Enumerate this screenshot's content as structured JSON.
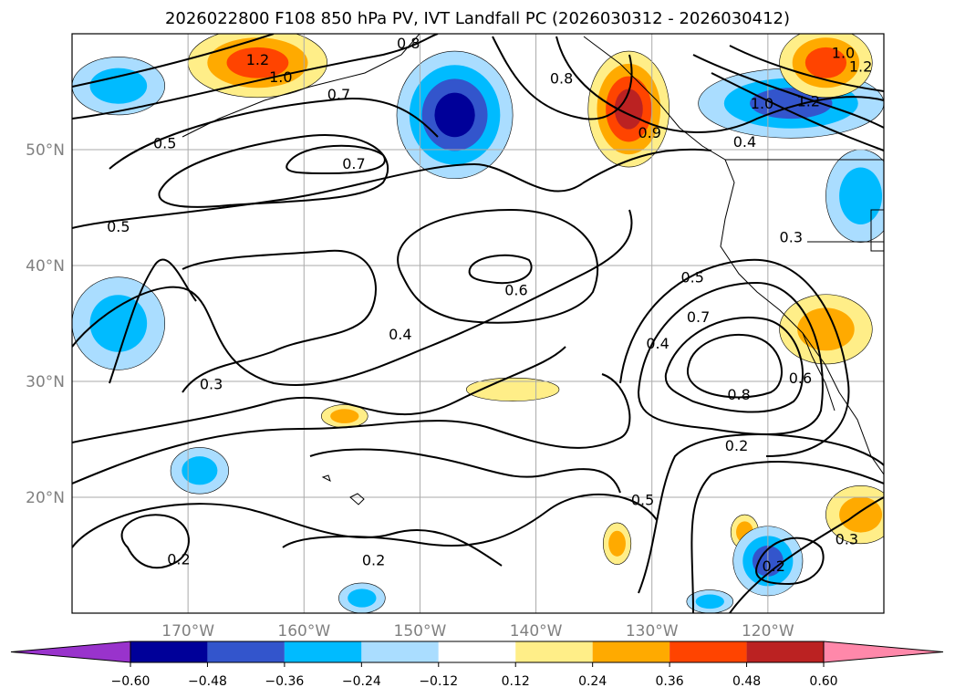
{
  "chart_data": {
    "type": "heatmap",
    "title": "2026022800 F108 850 hPa PV, IVT Landfall PC (2026030312 - 2026030412)",
    "lon_range": [
      -180,
      -110
    ],
    "lat_range": [
      10,
      60
    ],
    "x_ticks": [
      {
        "value": -170,
        "label": "170°W"
      },
      {
        "value": -160,
        "label": "160°W"
      },
      {
        "value": -150,
        "label": "150°W"
      },
      {
        "value": -140,
        "label": "140°W"
      },
      {
        "value": -130,
        "label": "130°W"
      },
      {
        "value": -120,
        "label": "120°W"
      }
    ],
    "y_ticks": [
      {
        "value": 50,
        "label": "50°N"
      },
      {
        "value": 40,
        "label": "40°N"
      },
      {
        "value": 30,
        "label": "30°N"
      },
      {
        "value": 20,
        "label": "20°N"
      }
    ],
    "colorbar": {
      "levels": [
        -0.72,
        -0.6,
        -0.48,
        -0.36,
        -0.24,
        -0.12,
        0.12,
        0.24,
        0.36,
        0.48,
        0.6,
        0.72
      ],
      "labels": [
        "−0.60",
        "−0.48",
        "−0.36",
        "−0.24",
        "−0.12",
        "0.12",
        "0.24",
        "0.36",
        "0.48",
        "0.60"
      ],
      "colors": [
        "#9933cc",
        "#000099",
        "#3355cc",
        "#00bbff",
        "#aaddff",
        "#ffffff",
        "#ffee88",
        "#ffaa00",
        "#ff4400",
        "#bb2222",
        "#ff88aa"
      ],
      "extend": "both"
    },
    "shaded_regions": [
      {
        "lon": -164,
        "lat": 57.5,
        "rx": 6,
        "ry": 3,
        "value": 0.5
      },
      {
        "lon": -176,
        "lat": 55.5,
        "rx": 4,
        "ry": 2.5,
        "value": -0.3
      },
      {
        "lon": -147,
        "lat": 53,
        "rx": 5,
        "ry": 5.5,
        "value": -0.65
      },
      {
        "lon": -132,
        "lat": 53.5,
        "rx": 3.5,
        "ry": 5,
        "value": 0.62
      },
      {
        "lon": -118,
        "lat": 54,
        "rx": 8,
        "ry": 3,
        "value": -0.42
      },
      {
        "lon": -112,
        "lat": 46,
        "rx": 3,
        "ry": 4,
        "value": -0.4
      },
      {
        "lon": -115,
        "lat": 57.5,
        "rx": 4,
        "ry": 3,
        "value": 0.45
      },
      {
        "lon": -176,
        "lat": 35,
        "rx": 4,
        "ry": 4,
        "value": -0.3
      },
      {
        "lon": -115,
        "lat": 34.5,
        "rx": 4,
        "ry": 3,
        "value": 0.38
      },
      {
        "lon": -142,
        "lat": 29.3,
        "rx": 4,
        "ry": 1,
        "value": 0.28
      },
      {
        "lon": -156.5,
        "lat": 27,
        "rx": 2,
        "ry": 1,
        "value": 0.3
      },
      {
        "lon": -169,
        "lat": 22.3,
        "rx": 2.5,
        "ry": 2,
        "value": -0.3
      },
      {
        "lon": -133,
        "lat": 16,
        "rx": 1.2,
        "ry": 1.8,
        "value": 0.3
      },
      {
        "lon": -122,
        "lat": 17,
        "rx": 1.2,
        "ry": 1.5,
        "value": 0.3
      },
      {
        "lon": -120,
        "lat": 14.5,
        "rx": 3,
        "ry": 3,
        "value": -0.52
      },
      {
        "lon": -112,
        "lat": 18.5,
        "rx": 3,
        "ry": 2.5,
        "value": 0.4
      },
      {
        "lon": -155,
        "lat": 11.3,
        "rx": 2,
        "ry": 1.3,
        "value": -0.3
      },
      {
        "lon": -125,
        "lat": 11,
        "rx": 2,
        "ry": 1,
        "value": -0.3
      }
    ],
    "contour_labels": [
      {
        "text": "1.2",
        "lon": -164,
        "lat": 57.8
      },
      {
        "text": "1.0",
        "lon": -162,
        "lat": 56.3
      },
      {
        "text": "0.7",
        "lon": -157,
        "lat": 54.8
      },
      {
        "text": "0.8",
        "lon": -151,
        "lat": 59.2
      },
      {
        "text": "0.8",
        "lon": -137.8,
        "lat": 56.2
      },
      {
        "text": "0.9",
        "lon": -130.2,
        "lat": 51.5
      },
      {
        "text": "1.0",
        "lon": -113.5,
        "lat": 58.4
      },
      {
        "text": "1.2",
        "lon": -112,
        "lat": 57.2
      },
      {
        "text": "1.0",
        "lon": -120.5,
        "lat": 54
      },
      {
        "text": "1.2",
        "lon": -116.5,
        "lat": 54.2
      },
      {
        "text": "0.4",
        "lon": -122,
        "lat": 50.7
      },
      {
        "text": "0.5",
        "lon": -172,
        "lat": 50.6
      },
      {
        "text": "0.7",
        "lon": -155.7,
        "lat": 48.8
      },
      {
        "text": "0.5",
        "lon": -176,
        "lat": 43.4
      },
      {
        "text": "0.6",
        "lon": -141.7,
        "lat": 37.9
      },
      {
        "text": "0.5",
        "lon": -126.5,
        "lat": 39
      },
      {
        "text": "0.3",
        "lon": -118,
        "lat": 42.5
      },
      {
        "text": "0.7",
        "lon": -126,
        "lat": 35.6
      },
      {
        "text": "0.4",
        "lon": -129.5,
        "lat": 33.3
      },
      {
        "text": "0.4",
        "lon": -151.7,
        "lat": 34.1
      },
      {
        "text": "0.3",
        "lon": -168,
        "lat": 29.8
      },
      {
        "text": "0.6",
        "lon": -117.2,
        "lat": 30.3
      },
      {
        "text": "0.8",
        "lon": -122.5,
        "lat": 28.9
      },
      {
        "text": "0.2",
        "lon": -122.7,
        "lat": 24.5
      },
      {
        "text": "0.5",
        "lon": -130.8,
        "lat": 19.8
      },
      {
        "text": "0.2",
        "lon": -154,
        "lat": 14.6
      },
      {
        "text": "0.2",
        "lon": -170.8,
        "lat": 14.7
      },
      {
        "text": "0.2",
        "lon": -119.5,
        "lat": 14.1
      },
      {
        "text": "0.3",
        "lon": -113.2,
        "lat": 16.4
      }
    ]
  }
}
